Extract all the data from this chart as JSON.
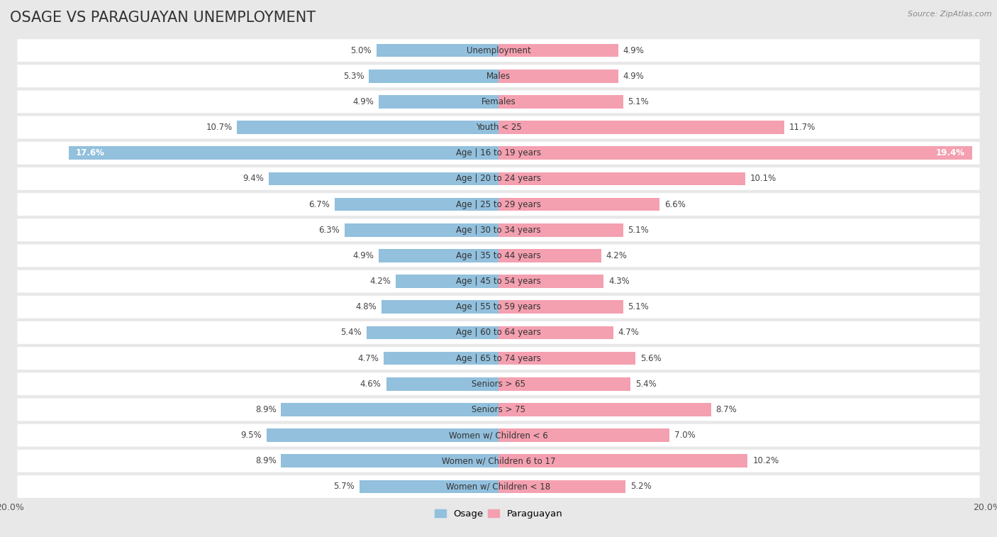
{
  "title": "OSAGE VS PARAGUAYAN UNEMPLOYMENT",
  "source": "Source: ZipAtlas.com",
  "categories": [
    "Unemployment",
    "Males",
    "Females",
    "Youth < 25",
    "Age | 16 to 19 years",
    "Age | 20 to 24 years",
    "Age | 25 to 29 years",
    "Age | 30 to 34 years",
    "Age | 35 to 44 years",
    "Age | 45 to 54 years",
    "Age | 55 to 59 years",
    "Age | 60 to 64 years",
    "Age | 65 to 74 years",
    "Seniors > 65",
    "Seniors > 75",
    "Women w/ Children < 6",
    "Women w/ Children 6 to 17",
    "Women w/ Children < 18"
  ],
  "osage_values": [
    5.0,
    5.3,
    4.9,
    10.7,
    17.6,
    9.4,
    6.7,
    6.3,
    4.9,
    4.2,
    4.8,
    5.4,
    4.7,
    4.6,
    8.9,
    9.5,
    8.9,
    5.7
  ],
  "paraguayan_values": [
    4.9,
    4.9,
    5.1,
    11.7,
    19.4,
    10.1,
    6.6,
    5.1,
    4.2,
    4.3,
    5.1,
    4.7,
    5.6,
    5.4,
    8.7,
    7.0,
    10.2,
    5.2
  ],
  "osage_color": "#92c0dd",
  "paraguayan_color": "#f4a0b0",
  "x_max": 20.0,
  "background_color": "#e8e8e8",
  "row_bg_color": "#f5f5f5",
  "title_fontsize": 15,
  "label_fontsize": 8.5,
  "tick_fontsize": 9,
  "value_fontsize": 8.5
}
